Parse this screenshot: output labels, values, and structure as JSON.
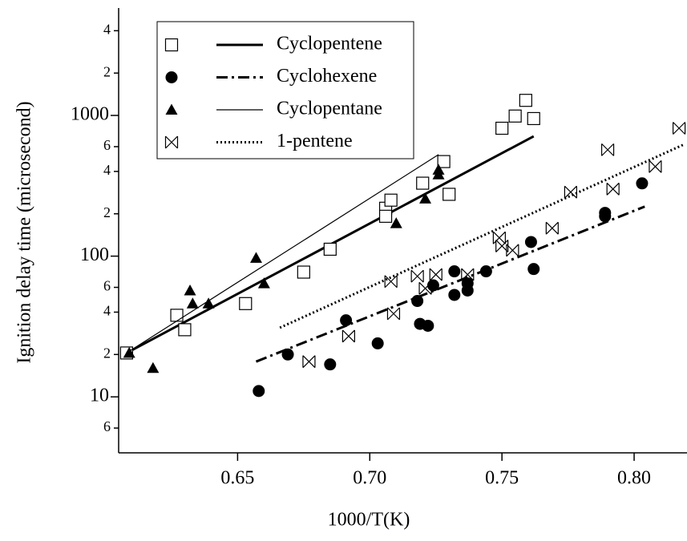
{
  "chart_data": {
    "type": "scatter",
    "x_label": "1000/T(K)",
    "y_label": "Ignition delay time (microsecond)",
    "xlim": [
      0.605,
      0.82
    ],
    "xticks": [
      {
        "value": 0.65,
        "label": "0.65"
      },
      {
        "value": 0.7,
        "label": "0.70"
      },
      {
        "value": 0.75,
        "label": "0.75"
      },
      {
        "value": 0.8,
        "label": "0.80"
      }
    ],
    "ylim": [
      4,
      5800
    ],
    "y_scale": "log",
    "yticks": [
      {
        "value": 6,
        "label": "6"
      },
      10,
      {
        "value": 20,
        "label": "2"
      },
      {
        "value": 40,
        "label": "4"
      },
      {
        "value": 60,
        "label": "6"
      },
      100,
      {
        "value": 200,
        "label": "2"
      },
      {
        "value": 400,
        "label": "4"
      },
      {
        "value": 600,
        "label": "6"
      },
      1000,
      {
        "value": 2000,
        "label": "2"
      },
      {
        "value": 4000,
        "label": "4"
      }
    ],
    "grid": false,
    "legend": "upper left",
    "series": [
      {
        "name": "Cyclopentene",
        "color": "#000000",
        "marker": "square-open",
        "line": "thick",
        "x": [
          0.608,
          0.627,
          0.63,
          0.653,
          0.675,
          0.685,
          0.706,
          0.706,
          0.708,
          0.72,
          0.728,
          0.73,
          0.75,
          0.755,
          0.759,
          0.762
        ],
        "values": [
          20.5,
          38,
          30,
          46,
          77,
          112,
          219,
          192,
          250,
          330,
          470,
          275,
          811,
          990,
          1280,
          950
        ],
        "fit": {
          "x": [
            0.608,
            0.762
          ],
          "values": [
            20.5,
            711
          ]
        }
      },
      {
        "name": "Cyclohexene",
        "color": "#000000",
        "marker": "circle",
        "line": "dash-dot",
        "x": [
          0.658,
          0.669,
          0.685,
          0.691,
          0.703,
          0.718,
          0.719,
          0.722,
          0.724,
          0.732,
          0.732,
          0.737,
          0.737,
          0.744,
          0.761,
          0.762,
          0.789,
          0.789,
          0.803
        ],
        "values": [
          11,
          20,
          17,
          35,
          24,
          48,
          33,
          32,
          62,
          53,
          78,
          64,
          57,
          78,
          126,
          81,
          203,
          192,
          329
        ],
        "fit": {
          "x": [
            0.657,
            0.804
          ],
          "values": [
            17.8,
            225
          ]
        }
      },
      {
        "name": "Cyclopentane",
        "color": "#000000",
        "marker": "triangle",
        "line": "thin",
        "x": [
          0.609,
          0.618,
          0.632,
          0.633,
          0.639,
          0.657,
          0.66,
          0.71,
          0.721,
          0.726,
          0.726
        ],
        "values": [
          20.5,
          16,
          57,
          46,
          46,
          97,
          64,
          171,
          256,
          380,
          411
        ],
        "fit": {
          "x": [
            0.608,
            0.726
          ],
          "values": [
            20.5,
            527
          ]
        }
      },
      {
        "name": "1-pentene",
        "color": "#000000",
        "marker": "bowtie",
        "line": "dotted",
        "x": [
          0.677,
          0.692,
          0.708,
          0.709,
          0.718,
          0.721,
          0.725,
          0.737,
          0.749,
          0.75,
          0.754,
          0.769,
          0.776,
          0.79,
          0.792,
          0.808,
          0.817
        ],
        "values": [
          17.8,
          27,
          66,
          39,
          72,
          59,
          74,
          74,
          135,
          118,
          110,
          158,
          285,
          570,
          300,
          433,
          811
        ],
        "fit": {
          "x": [
            0.666,
            0.819
          ],
          "values": [
            31,
            624
          ]
        }
      }
    ]
  }
}
